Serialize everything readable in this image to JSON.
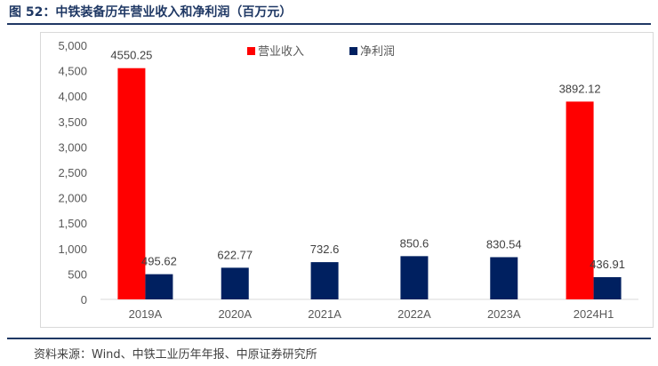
{
  "header": {
    "title": "图 52：中铁装备历年营业收入和净利润（百万元）"
  },
  "footer": {
    "source": "资料来源：Wind、中铁工业历年年报、中原证券研究所"
  },
  "colors": {
    "revenue": "#ff0000",
    "net_profit": "#002060",
    "title": "#1f3864"
  },
  "chart_data": {
    "type": "bar",
    "title": "",
    "xlabel": "",
    "ylabel": "",
    "categories": [
      "2019A",
      "2020A",
      "2021A",
      "2022A",
      "2023A",
      "2024H1"
    ],
    "ylim": [
      0,
      5000
    ],
    "yticks": [
      0,
      500,
      1000,
      1500,
      2000,
      2500,
      3000,
      3500,
      4000,
      4500,
      5000
    ],
    "ytick_labels": [
      "0",
      "500",
      "1,000",
      "1,500",
      "2,000",
      "2,500",
      "3,000",
      "3,500",
      "4,000",
      "4,500",
      "5,000"
    ],
    "grid": false,
    "legend_position": "top",
    "series": [
      {
        "name": "营业收入",
        "color": "#ff0000",
        "values": [
          4550.25,
          null,
          null,
          null,
          null,
          3892.12
        ],
        "labels": [
          "4550.25",
          "",
          "",
          "",
          "",
          "3892.12"
        ]
      },
      {
        "name": "净利润",
        "color": "#002060",
        "values": [
          495.62,
          622.77,
          732.6,
          850.6,
          830.54,
          436.91
        ],
        "labels": [
          "495.62",
          "622.77",
          "732.6",
          "850.6",
          "830.54",
          "436.91"
        ]
      }
    ]
  }
}
